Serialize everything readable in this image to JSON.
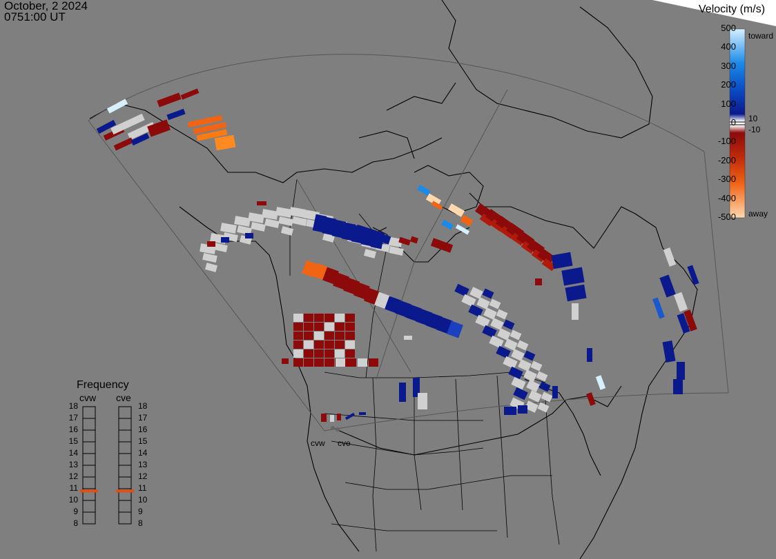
{
  "header": {
    "date": "October, 2 2024",
    "time": "0751:00 UT"
  },
  "velocity_scale": {
    "title": "Velocity (m/s)",
    "ticks": [
      "500",
      "400",
      "300",
      "200",
      "100",
      "0",
      "-100",
      "-200",
      "-300",
      "-400",
      "-500"
    ],
    "inner_ticks": [
      "10",
      "-10"
    ],
    "toward_label": "toward",
    "away_label": "away",
    "colors": {
      "toward_light": "#d6f0ff",
      "toward_mid": "#1c8be8",
      "toward_dark": "#0a1a8c",
      "away_dark": "#8c0a0a",
      "away_mid": "#f06414",
      "away_light": "#ffd8b0",
      "ground_scatter": "#d0d0d0"
    }
  },
  "frequency": {
    "title": "Frequency",
    "radar_left": "cvw",
    "radar_right": "cve",
    "ticks": [
      "18",
      "17",
      "16",
      "15",
      "14",
      "13",
      "12",
      "11",
      "10",
      "9",
      "8"
    ],
    "cvw_mhz": 10.8,
    "cve_mhz": 10.8
  },
  "map": {
    "radar_labels": [
      "cvw",
      "cve"
    ],
    "background": "#7f7f7f"
  }
}
